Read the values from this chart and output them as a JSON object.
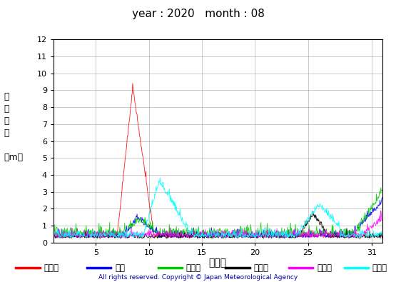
{
  "title": "year : 2020   month : 08",
  "xlabel": "（日）",
  "ylabel": "有\n義\n波\n高\n\n（m）",
  "ylim": [
    0,
    12
  ],
  "yticks": [
    0,
    1,
    2,
    3,
    4,
    5,
    6,
    7,
    8,
    9,
    10,
    11,
    12
  ],
  "xlim": [
    1,
    32
  ],
  "xticks": [
    5,
    10,
    15,
    20,
    25,
    31
  ],
  "copyright": "All rights reserved. Copyright © Japan Meteorological Agency",
  "series": [
    {
      "label": "上ノ国",
      "color": "#FF0000"
    },
    {
      "label": "唐桑",
      "color": "#0000FF"
    },
    {
      "label": "石廊崎",
      "color": "#00CC00"
    },
    {
      "label": "経ヶ尬",
      "color": "#000000"
    },
    {
      "label": "生月島",
      "color": "#FF00FF"
    },
    {
      "label": "屋久島",
      "color": "#00FFFF"
    }
  ]
}
